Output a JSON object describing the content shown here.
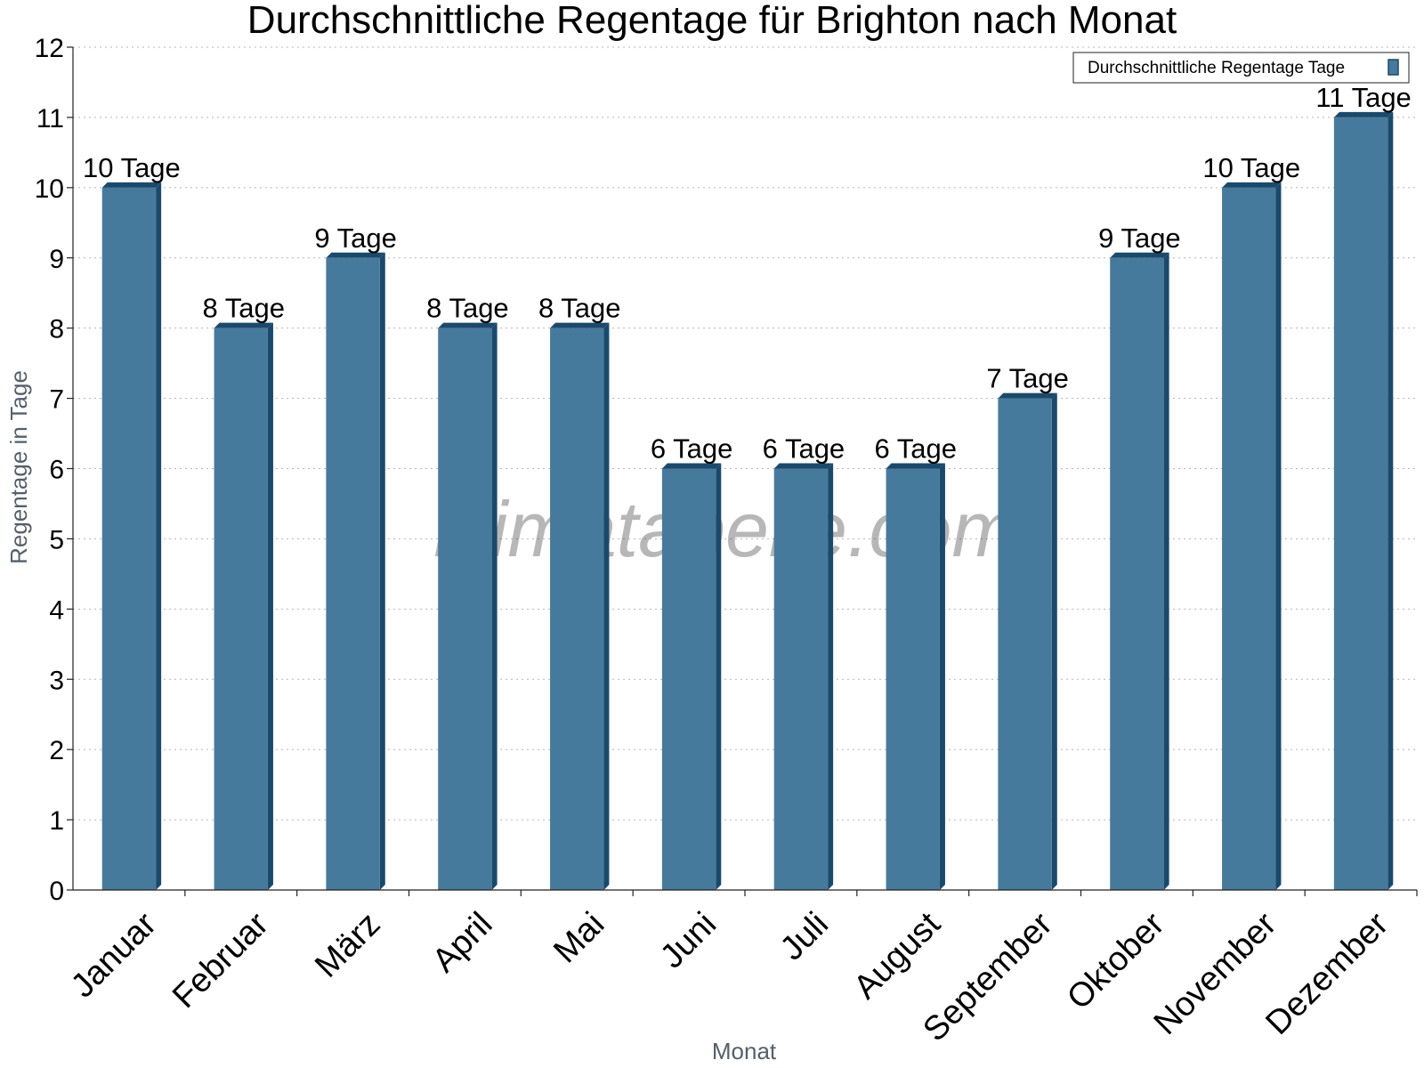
{
  "chart_data": {
    "type": "bar",
    "title": "Durchschnittliche Regentage für Brighton nach Monat",
    "xlabel": "Monat",
    "ylabel": "Regentage in Tage",
    "ylim": [
      0,
      12
    ],
    "yticks": [
      0,
      1,
      2,
      3,
      4,
      5,
      6,
      7,
      8,
      9,
      10,
      11,
      12
    ],
    "grid": true,
    "legend_position": "top-right",
    "categories": [
      "Januar",
      "Februar",
      "März",
      "April",
      "Mai",
      "Juni",
      "Juli",
      "August",
      "September",
      "Oktober",
      "November",
      "Dezember"
    ],
    "series": [
      {
        "name": "Durchschnittliche Regentage Tage",
        "values": [
          10,
          8,
          9,
          8,
          8,
          6,
          6,
          6,
          7,
          9,
          10,
          11
        ],
        "data_labels": [
          "10 Tage",
          "8 Tage",
          "9 Tage",
          "8 Tage",
          "8 Tage",
          "6 Tage",
          "6 Tage",
          "6 Tage",
          "7 Tage",
          "9 Tage",
          "10 Tage",
          "11 Tage"
        ],
        "color": "#467a9c",
        "side_color": "#1a4a6b"
      }
    ],
    "watermark": "klimatabelle.com"
  }
}
